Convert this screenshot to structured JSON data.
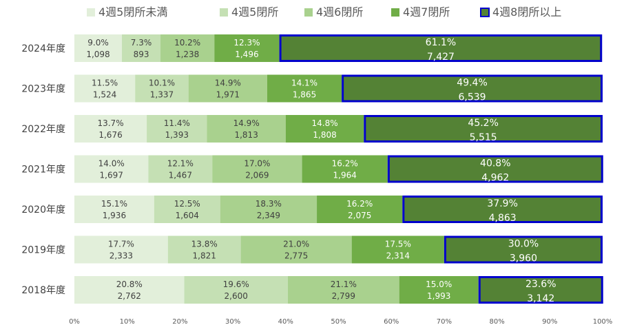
{
  "chart_data": {
    "type": "bar",
    "orientation": "horizontal",
    "stacked": "percent",
    "legend_position": "top",
    "grid": false,
    "xlim": [
      0,
      100
    ],
    "x_tick_labels": [
      "0%",
      "10%",
      "20%",
      "30%",
      "40%",
      "50%",
      "60%",
      "70%",
      "80%",
      "90%",
      "100%"
    ],
    "categories": [
      "2024年度",
      "2023年度",
      "2022年度",
      "2021年度",
      "2020年度",
      "2019年度",
      "2018年度"
    ],
    "series": [
      {
        "name": "4週5閉所未満",
        "color": "#e2efda",
        "text_color": "#404040",
        "percents": [
          9.0,
          11.5,
          13.7,
          14.0,
          15.1,
          17.7,
          20.8
        ],
        "percent_labels": [
          "9.0%",
          "11.5%",
          "13.7%",
          "14.0%",
          "15.1%",
          "17.7%",
          "20.8%"
        ],
        "counts": [
          1098,
          1524,
          1676,
          1697,
          1936,
          2333,
          2762
        ],
        "count_labels": [
          "1,098",
          "1,524",
          "1,676",
          "1,697",
          "1,936",
          "2,333",
          "2,762"
        ]
      },
      {
        "name": "4週5閉所",
        "color": "#c5e0b4",
        "text_color": "#404040",
        "percents": [
          7.3,
          10.1,
          11.4,
          12.1,
          12.5,
          13.8,
          19.6
        ],
        "percent_labels": [
          "7.3%",
          "10.1%",
          "11.4%",
          "12.1%",
          "12.5%",
          "13.8%",
          "19.6%"
        ],
        "counts": [
          893,
          1337,
          1393,
          1467,
          1604,
          1821,
          2600
        ],
        "count_labels": [
          "893",
          "1,337",
          "1,393",
          "1,467",
          "1,604",
          "1,821",
          "2,600"
        ]
      },
      {
        "name": "4週6閉所",
        "color": "#a9d18e",
        "text_color": "#404040",
        "percents": [
          10.2,
          14.9,
          14.9,
          17.0,
          18.3,
          21.0,
          21.1
        ],
        "percent_labels": [
          "10.2%",
          "14.9%",
          "14.9%",
          "17.0%",
          "18.3%",
          "21.0%",
          "21.1%"
        ],
        "counts": [
          1238,
          1971,
          1813,
          2069,
          2349,
          2775,
          2799
        ],
        "count_labels": [
          "1,238",
          "1,971",
          "1,813",
          "2,069",
          "2,349",
          "2,775",
          "2,799"
        ]
      },
      {
        "name": "4週7閉所",
        "color": "#70ad47",
        "text_color": "#ffffff",
        "percents": [
          12.3,
          14.1,
          14.8,
          16.2,
          16.2,
          17.5,
          15.0
        ],
        "percent_labels": [
          "12.3%",
          "14.1%",
          "14.8%",
          "16.2%",
          "16.2%",
          "17.5%",
          "15.0%"
        ],
        "counts": [
          1496,
          1865,
          1808,
          1964,
          2075,
          2314,
          1993
        ],
        "count_labels": [
          "1,496",
          "1,865",
          "1,808",
          "1,964",
          "2,075",
          "2,314",
          "1,993"
        ]
      },
      {
        "name": "4週8閉所以上",
        "color": "#548235",
        "border_color": "#0000cc",
        "text_color": "#ffffff",
        "percents": [
          61.1,
          49.4,
          45.2,
          40.8,
          37.9,
          30.0,
          23.6
        ],
        "percent_labels": [
          "61.1%",
          "49.4%",
          "45.2%",
          "40.8%",
          "37.9%",
          "30.0%",
          "23.6%"
        ],
        "counts": [
          7427,
          6539,
          5515,
          4962,
          4863,
          3960,
          3142
        ],
        "count_labels": [
          "7,427",
          "6,539",
          "5,515",
          "4,962",
          "4,863",
          "3,960",
          "3,142"
        ]
      }
    ]
  }
}
